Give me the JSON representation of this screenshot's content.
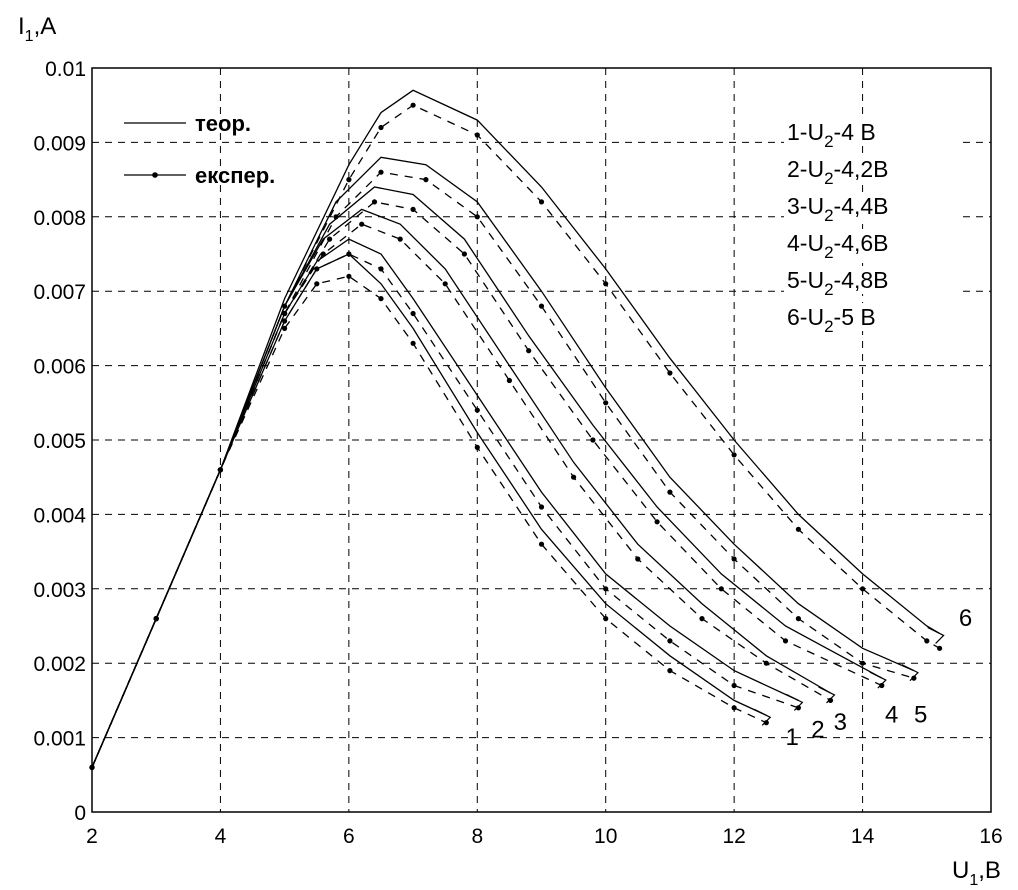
{
  "chart_data": {
    "type": "line",
    "ylabel_main": "I",
    "ylabel_sub": "1",
    "ylabel_unit": ",A",
    "xlabel_main": "U",
    "xlabel_sub": "1",
    "xlabel_unit": ",B",
    "xlim": [
      2,
      16
    ],
    "ylim": [
      0,
      0.01
    ],
    "x_ticks": [
      "2",
      "4",
      "6",
      "8",
      "10",
      "12",
      "14",
      "16"
    ],
    "y_ticks": [
      "0",
      "0.001",
      "0.002",
      "0.003",
      "0.004",
      "0.005",
      "0.006",
      "0.007",
      "0.008",
      "0.009",
      "0.01"
    ],
    "grid": true,
    "legend_position": "top-left",
    "legend": [
      {
        "label": "теор.",
        "style": "solid"
      },
      {
        "label": "експер.",
        "style": "dashed-markers"
      }
    ],
    "conditions": [
      {
        "prefix": "1-U",
        "sub": "2",
        "suffix": "-4  B"
      },
      {
        "prefix": "2-U",
        "sub": "2",
        "suffix": "-4,2B"
      },
      {
        "prefix": "3-U",
        "sub": "2",
        "suffix": "-4,4B"
      },
      {
        "prefix": "4-U",
        "sub": "2",
        "suffix": "-4,6B"
      },
      {
        "prefix": "5-U",
        "sub": "2",
        "suffix": "-4,8B"
      },
      {
        "prefix": "6-U",
        "sub": "2",
        "suffix": "-5  B"
      }
    ],
    "series": [
      {
        "name": "1",
        "label_pos": [
          12.8,
          0.0009
        ],
        "theoretical": [
          [
            2,
            0.0006
          ],
          [
            3,
            0.0026
          ],
          [
            4,
            0.0046
          ],
          [
            5,
            0.0066
          ],
          [
            5.5,
            0.0073
          ],
          [
            6,
            0.0075
          ],
          [
            6.5,
            0.0071
          ],
          [
            7,
            0.0065
          ],
          [
            8,
            0.0051
          ],
          [
            9,
            0.0038
          ],
          [
            10,
            0.0028
          ],
          [
            11,
            0.0021
          ],
          [
            12,
            0.0015
          ],
          [
            12.5,
            0.0013
          ]
        ],
        "experimental": [
          [
            2,
            0.0006
          ],
          [
            3,
            0.0026
          ],
          [
            4,
            0.0046
          ],
          [
            5,
            0.0065
          ],
          [
            5.5,
            0.0071
          ],
          [
            6,
            0.0072
          ],
          [
            6.5,
            0.0069
          ],
          [
            7,
            0.0063
          ],
          [
            8,
            0.0049
          ],
          [
            9,
            0.0036
          ],
          [
            10,
            0.0026
          ],
          [
            11,
            0.0019
          ],
          [
            12,
            0.0014
          ],
          [
            12.5,
            0.0012
          ]
        ]
      },
      {
        "name": "2",
        "label_pos": [
          13.2,
          0.001
        ],
        "theoretical": [
          [
            2,
            0.0006
          ],
          [
            3,
            0.0026
          ],
          [
            4,
            0.0046
          ],
          [
            5,
            0.0067
          ],
          [
            5.5,
            0.0074
          ],
          [
            6,
            0.0077
          ],
          [
            6.5,
            0.0075
          ],
          [
            7,
            0.0069
          ],
          [
            8,
            0.0056
          ],
          [
            9,
            0.0043
          ],
          [
            10,
            0.0032
          ],
          [
            11,
            0.0025
          ],
          [
            12,
            0.0019
          ],
          [
            13,
            0.0015
          ]
        ],
        "experimental": [
          [
            2,
            0.0006
          ],
          [
            3,
            0.0026
          ],
          [
            4,
            0.0046
          ],
          [
            5,
            0.0066
          ],
          [
            5.5,
            0.0073
          ],
          [
            6,
            0.0075
          ],
          [
            6.5,
            0.0073
          ],
          [
            7,
            0.0067
          ],
          [
            8,
            0.0054
          ],
          [
            9,
            0.0041
          ],
          [
            10,
            0.003
          ],
          [
            11,
            0.0023
          ],
          [
            12,
            0.0017
          ],
          [
            13,
            0.0014
          ]
        ]
      },
      {
        "name": "3",
        "label_pos": [
          13.55,
          0.0011
        ],
        "theoretical": [
          [
            2,
            0.0006
          ],
          [
            3,
            0.0026
          ],
          [
            4,
            0.0046
          ],
          [
            5,
            0.0068
          ],
          [
            5.6,
            0.0077
          ],
          [
            6.2,
            0.0081
          ],
          [
            6.8,
            0.0079
          ],
          [
            7.5,
            0.0073
          ],
          [
            8.5,
            0.006
          ],
          [
            9.5,
            0.0047
          ],
          [
            10.5,
            0.0036
          ],
          [
            11.5,
            0.0028
          ],
          [
            12.5,
            0.0021
          ],
          [
            13.5,
            0.0016
          ]
        ],
        "experimental": [
          [
            2,
            0.0006
          ],
          [
            3,
            0.0026
          ],
          [
            4,
            0.0046
          ],
          [
            5,
            0.0067
          ],
          [
            5.6,
            0.0075
          ],
          [
            6.2,
            0.0079
          ],
          [
            6.8,
            0.0077
          ],
          [
            7.5,
            0.0071
          ],
          [
            8.5,
            0.0058
          ],
          [
            9.5,
            0.0045
          ],
          [
            10.5,
            0.0034
          ],
          [
            11.5,
            0.0026
          ],
          [
            12.5,
            0.002
          ],
          [
            13.5,
            0.0015
          ]
        ]
      },
      {
        "name": "4",
        "label_pos": [
          14.35,
          0.0012
        ],
        "theoretical": [
          [
            2,
            0.0006
          ],
          [
            3,
            0.0026
          ],
          [
            4,
            0.0046
          ],
          [
            5,
            0.0068
          ],
          [
            5.7,
            0.0079
          ],
          [
            6.4,
            0.0084
          ],
          [
            7,
            0.0083
          ],
          [
            7.8,
            0.0077
          ],
          [
            8.8,
            0.0064
          ],
          [
            9.8,
            0.0052
          ],
          [
            10.8,
            0.0041
          ],
          [
            11.8,
            0.0032
          ],
          [
            12.8,
            0.0025
          ],
          [
            14.3,
            0.0018
          ]
        ],
        "experimental": [
          [
            2,
            0.0006
          ],
          [
            3,
            0.0026
          ],
          [
            4,
            0.0046
          ],
          [
            5,
            0.0067
          ],
          [
            5.7,
            0.0077
          ],
          [
            6.4,
            0.0082
          ],
          [
            7,
            0.0081
          ],
          [
            7.8,
            0.0075
          ],
          [
            8.8,
            0.0062
          ],
          [
            9.8,
            0.005
          ],
          [
            10.8,
            0.0039
          ],
          [
            11.8,
            0.003
          ],
          [
            12.8,
            0.0023
          ],
          [
            14.3,
            0.0017
          ]
        ]
      },
      {
        "name": "5",
        "label_pos": [
          14.8,
          0.0012
        ],
        "theoretical": [
          [
            2,
            0.0006
          ],
          [
            3,
            0.0026
          ],
          [
            4,
            0.0046
          ],
          [
            5,
            0.0068
          ],
          [
            5.8,
            0.0082
          ],
          [
            6.5,
            0.0088
          ],
          [
            7.2,
            0.0087
          ],
          [
            8,
            0.0082
          ],
          [
            9,
            0.007
          ],
          [
            10,
            0.0057
          ],
          [
            11,
            0.0045
          ],
          [
            12,
            0.0036
          ],
          [
            13,
            0.0028
          ],
          [
            14,
            0.0022
          ],
          [
            14.8,
            0.0019
          ]
        ],
        "experimental": [
          [
            2,
            0.0006
          ],
          [
            3,
            0.0026
          ],
          [
            4,
            0.0046
          ],
          [
            5,
            0.0067
          ],
          [
            5.8,
            0.008
          ],
          [
            6.5,
            0.0086
          ],
          [
            7.2,
            0.0085
          ],
          [
            8,
            0.008
          ],
          [
            9,
            0.0068
          ],
          [
            10,
            0.0055
          ],
          [
            11,
            0.0043
          ],
          [
            12,
            0.0034
          ],
          [
            13,
            0.0026
          ],
          [
            14,
            0.002
          ],
          [
            14.8,
            0.0018
          ]
        ]
      },
      {
        "name": "6",
        "label_pos": [
          15.5,
          0.0025
        ],
        "theoretical": [
          [
            2,
            0.0006
          ],
          [
            3,
            0.0026
          ],
          [
            4,
            0.0046
          ],
          [
            5,
            0.0069
          ],
          [
            6,
            0.0087
          ],
          [
            6.5,
            0.0094
          ],
          [
            7,
            0.0097
          ],
          [
            8,
            0.0093
          ],
          [
            9,
            0.0084
          ],
          [
            10,
            0.0073
          ],
          [
            11,
            0.0061
          ],
          [
            12,
            0.005
          ],
          [
            13,
            0.004
          ],
          [
            14,
            0.0032
          ],
          [
            15,
            0.0025
          ],
          [
            15.2,
            0.0024
          ]
        ],
        "experimental": [
          [
            2,
            0.0006
          ],
          [
            3,
            0.0026
          ],
          [
            4,
            0.0046
          ],
          [
            5,
            0.0068
          ],
          [
            6,
            0.0085
          ],
          [
            6.5,
            0.0092
          ],
          [
            7,
            0.0095
          ],
          [
            8,
            0.0091
          ],
          [
            9,
            0.0082
          ],
          [
            10,
            0.0071
          ],
          [
            11,
            0.0059
          ],
          [
            12,
            0.0048
          ],
          [
            13,
            0.0038
          ],
          [
            14,
            0.003
          ],
          [
            15,
            0.0023
          ],
          [
            15.2,
            0.0022
          ]
        ]
      }
    ]
  }
}
